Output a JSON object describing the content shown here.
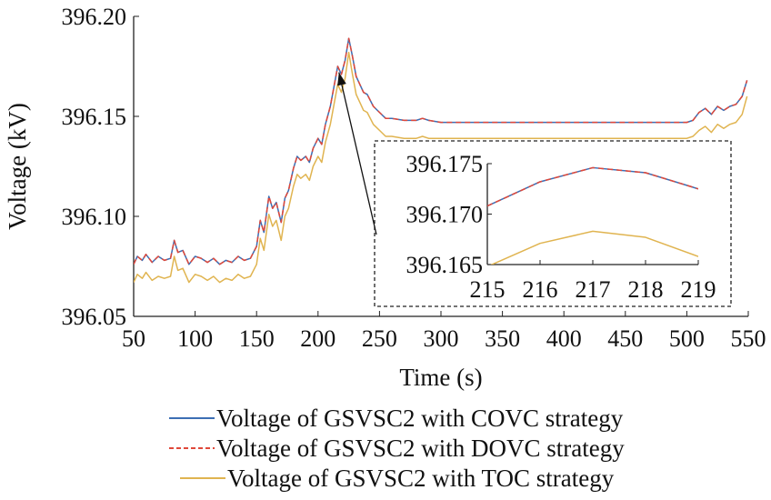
{
  "chart_data": [
    {
      "type": "line",
      "xlabel": "Time (s)",
      "ylabel": "Voltage (kV)",
      "xlim": [
        50,
        550
      ],
      "ylim": [
        396.05,
        396.2
      ],
      "xticks": [
        50,
        100,
        150,
        200,
        250,
        300,
        350,
        400,
        450,
        500,
        550
      ],
      "yticks": [
        396.05,
        396.1,
        396.15,
        396.2
      ],
      "ytick_labels": [
        "396.05",
        "396.10",
        "396.15",
        "396.20"
      ],
      "grid": false,
      "legend_position": "bottom",
      "series": [
        {
          "name": "Voltage of GSVSC2 with COVC strategy",
          "style": "solid",
          "color": "#3c6eb4",
          "x": [
            50,
            53,
            57,
            60,
            65,
            70,
            75,
            80,
            83,
            86,
            90,
            95,
            100,
            105,
            110,
            115,
            120,
            125,
            130,
            135,
            140,
            145,
            150,
            153,
            156,
            160,
            163,
            166,
            170,
            173,
            176,
            180,
            183,
            186,
            190,
            193,
            196,
            200,
            203,
            206,
            210,
            213,
            216,
            219,
            222,
            225,
            228,
            231,
            234,
            237,
            240,
            245,
            250,
            255,
            260,
            270,
            280,
            285,
            290,
            300,
            350,
            400,
            450,
            500,
            505,
            510,
            515,
            520,
            525,
            530,
            535,
            540,
            545,
            549
          ],
          "y": [
            396.076,
            396.08,
            396.078,
            396.081,
            396.077,
            396.08,
            396.078,
            396.079,
            396.088,
            396.082,
            396.083,
            396.076,
            396.08,
            396.079,
            396.077,
            396.079,
            396.076,
            396.078,
            396.077,
            396.08,
            396.078,
            396.079,
            396.085,
            396.098,
            396.092,
            396.11,
            396.104,
            396.107,
            396.097,
            396.109,
            396.113,
            396.124,
            396.13,
            396.128,
            396.13,
            396.127,
            396.134,
            396.139,
            396.136,
            396.146,
            396.155,
            396.165,
            396.175,
            396.171,
            396.178,
            396.189,
            396.18,
            396.17,
            396.166,
            396.162,
            396.161,
            396.155,
            396.152,
            396.149,
            396.149,
            396.148,
            396.148,
            396.149,
            396.148,
            396.147,
            396.147,
            396.147,
            396.147,
            396.147,
            396.148,
            396.152,
            396.154,
            396.151,
            396.155,
            396.153,
            396.155,
            396.156,
            396.16,
            396.168
          ]
        },
        {
          "name": "Voltage of GSVSC2 with DOVC strategy",
          "style": "dashed",
          "color": "#e0483a",
          "x": [
            50,
            53,
            57,
            60,
            65,
            70,
            75,
            80,
            83,
            86,
            90,
            95,
            100,
            105,
            110,
            115,
            120,
            125,
            130,
            135,
            140,
            145,
            150,
            153,
            156,
            160,
            163,
            166,
            170,
            173,
            176,
            180,
            183,
            186,
            190,
            193,
            196,
            200,
            203,
            206,
            210,
            213,
            216,
            219,
            222,
            225,
            228,
            231,
            234,
            237,
            240,
            245,
            250,
            255,
            260,
            270,
            280,
            285,
            290,
            300,
            350,
            400,
            450,
            500,
            505,
            510,
            515,
            520,
            525,
            530,
            535,
            540,
            545,
            549
          ],
          "y": [
            396.076,
            396.08,
            396.078,
            396.081,
            396.077,
            396.08,
            396.078,
            396.079,
            396.088,
            396.082,
            396.083,
            396.076,
            396.08,
            396.079,
            396.077,
            396.079,
            396.076,
            396.078,
            396.077,
            396.08,
            396.078,
            396.079,
            396.085,
            396.098,
            396.092,
            396.11,
            396.104,
            396.107,
            396.097,
            396.109,
            396.113,
            396.124,
            396.13,
            396.128,
            396.13,
            396.127,
            396.134,
            396.139,
            396.136,
            396.146,
            396.155,
            396.165,
            396.175,
            396.171,
            396.178,
            396.189,
            396.18,
            396.17,
            396.166,
            396.162,
            396.161,
            396.155,
            396.152,
            396.149,
            396.149,
            396.148,
            396.148,
            396.149,
            396.148,
            396.147,
            396.147,
            396.147,
            396.147,
            396.147,
            396.148,
            396.152,
            396.154,
            396.151,
            396.155,
            396.153,
            396.155,
            396.156,
            396.16,
            396.168
          ]
        },
        {
          "name": "Voltage of GSVSC2 with TOC strategy",
          "style": "solid",
          "color": "#e0b450",
          "x": [
            50,
            53,
            57,
            60,
            65,
            70,
            75,
            80,
            83,
            86,
            90,
            95,
            100,
            105,
            110,
            115,
            120,
            125,
            130,
            135,
            140,
            145,
            150,
            153,
            156,
            160,
            163,
            166,
            170,
            173,
            176,
            180,
            183,
            186,
            190,
            193,
            196,
            200,
            203,
            206,
            210,
            213,
            216,
            219,
            222,
            225,
            228,
            231,
            234,
            237,
            240,
            245,
            250,
            255,
            260,
            270,
            280,
            285,
            290,
            300,
            350,
            400,
            450,
            500,
            505,
            510,
            515,
            520,
            525,
            530,
            535,
            540,
            545,
            549
          ],
          "y": [
            396.067,
            396.071,
            396.069,
            396.072,
            396.068,
            396.07,
            396.069,
            396.07,
            396.08,
            396.073,
            396.074,
            396.067,
            396.071,
            396.07,
            396.068,
            396.07,
            396.067,
            396.069,
            396.068,
            396.071,
            396.069,
            396.07,
            396.076,
            396.089,
            396.083,
            396.101,
            396.095,
            396.098,
            396.088,
            396.1,
            396.104,
            396.115,
            396.121,
            396.119,
            396.121,
            396.118,
            396.125,
            396.13,
            396.127,
            396.137,
            396.146,
            396.156,
            396.166,
            396.162,
            396.169,
            396.182,
            396.171,
            396.161,
            396.157,
            396.153,
            396.152,
            396.146,
            396.143,
            396.14,
            396.14,
            396.139,
            396.139,
            396.14,
            396.139,
            396.139,
            396.139,
            396.139,
            396.139,
            396.139,
            396.14,
            396.143,
            396.145,
            396.142,
            396.146,
            396.144,
            396.146,
            396.147,
            396.151,
            396.16
          ]
        }
      ],
      "annotation": {
        "type": "arrow-to-inset",
        "from_x": 217,
        "from_y": 396.172
      }
    },
    {
      "type": "line",
      "inset": true,
      "xlim": [
        215,
        219
      ],
      "ylim": [
        396.165,
        396.175
      ],
      "xticks": [
        215,
        216,
        217,
        218,
        219
      ],
      "yticks": [
        396.165,
        396.17,
        396.175
      ],
      "ytick_labels": [
        "396.165",
        "396.170",
        "396.175"
      ],
      "grid": false,
      "series": [
        {
          "name": "Voltage of GSVSC2 with COVC strategy",
          "style": "solid",
          "color": "#3c6eb4",
          "x": [
            215,
            216,
            217,
            218,
            219
          ],
          "y": [
            396.1708,
            396.1732,
            396.1746,
            396.1741,
            396.1725
          ]
        },
        {
          "name": "Voltage of GSVSC2 with DOVC strategy",
          "style": "dashed",
          "color": "#e0483a",
          "x": [
            215,
            216,
            217,
            218,
            219
          ],
          "y": [
            396.1708,
            396.1732,
            396.1746,
            396.1741,
            396.1725
          ]
        },
        {
          "name": "Voltage of GSVSC2 with TOC strategy",
          "style": "solid",
          "color": "#e0b450",
          "x": [
            215,
            216,
            217,
            218,
            219
          ],
          "y": [
            396.1648,
            396.1671,
            396.1683,
            396.1677,
            396.1658
          ]
        }
      ]
    }
  ]
}
